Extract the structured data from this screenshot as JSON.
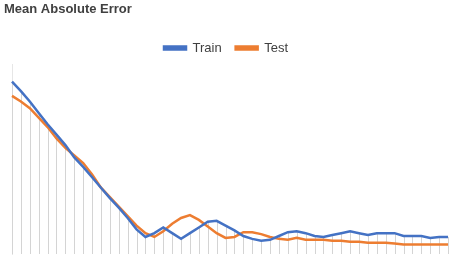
{
  "chart_data": {
    "type": "line",
    "title": "Mean Absolute Error",
    "categories": [
      null,
      null,
      null,
      null,
      null,
      null,
      null,
      null,
      null,
      null,
      null,
      null,
      null,
      null,
      null,
      null,
      null,
      null,
      null,
      null,
      null,
      null,
      null,
      null,
      null,
      null,
      null,
      null,
      null,
      null,
      null,
      null,
      null,
      null,
      null,
      null,
      null,
      null,
      null,
      null,
      null,
      null,
      null,
      null,
      null,
      null,
      null,
      null,
      null,
      null
    ],
    "series": [
      {
        "name": "Train",
        "color": "#4472c4",
        "marker": "none",
        "values": [
          91,
          86,
          80.5,
          74.5,
          68.5,
          63,
          57.5,
          51,
          46,
          40.5,
          35,
          29.5,
          24.5,
          19,
          13,
          9,
          11,
          14,
          11,
          8,
          11,
          14,
          17,
          17.5,
          15,
          12.5,
          9.5,
          8,
          7,
          7.5,
          9.5,
          11.5,
          12,
          11,
          9.5,
          9,
          10,
          11,
          12,
          11,
          10,
          11,
          11,
          11,
          9.5,
          9.5,
          9.5,
          8.5,
          9,
          9
        ]
      },
      {
        "name": "Test",
        "color": "#ed7d31",
        "marker": "none",
        "values": [
          83.5,
          80.5,
          77,
          72,
          67,
          61,
          56,
          52,
          48,
          42,
          35,
          30,
          25,
          20,
          15,
          11,
          9,
          12,
          16,
          19,
          20.5,
          18,
          14.5,
          11,
          8.5,
          9,
          11.5,
          11.5,
          10.5,
          9,
          8,
          7.5,
          8.5,
          7.5,
          7.5,
          7.5,
          7,
          7,
          6.5,
          6.5,
          6,
          6,
          6,
          5.5,
          5,
          5,
          5,
          5,
          5,
          5
        ]
      }
    ],
    "ylim": [
      0,
      100
    ],
    "legend": "top",
    "tick_labels": false
  }
}
